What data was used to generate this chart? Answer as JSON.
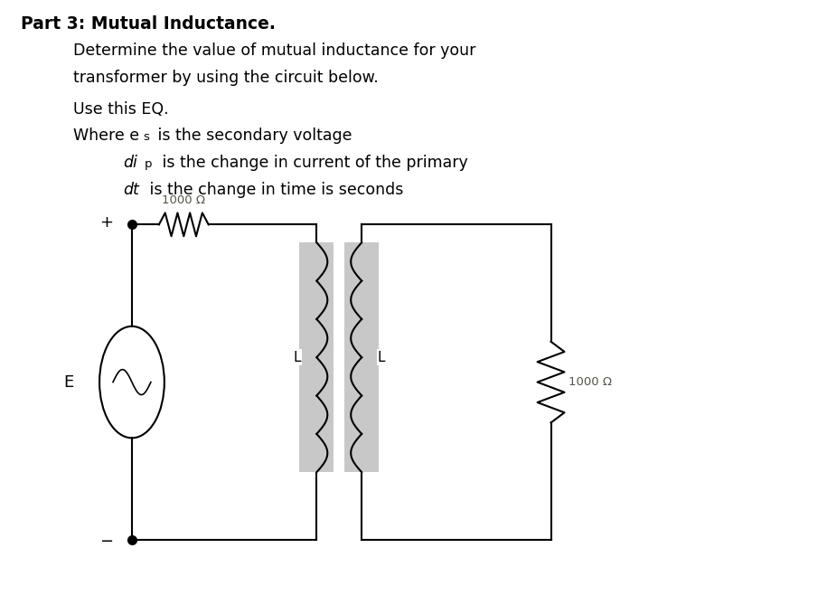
{
  "title_bold": "Part 3: Mutual Inductance.",
  "line1": "Determine the value of mutual inductance for your",
  "line2": "transformer by using the circuit below.",
  "line3": "Use this EQ.",
  "line4_pre": "Where e",
  "line4_sub": "s",
  "line4_suf": " is the secondary voltage",
  "line5_ital": "di",
  "line5_sub": "p",
  "line5_suf": " is the change in current of the primary",
  "line6_ital": "dt",
  "line6_suf": " is the change in time is seconds",
  "res1_label": "1000 Ω",
  "res2_label": "1000 Ω",
  "ind_label": "L",
  "src_label": "E",
  "plus_label": "+",
  "minus_label": "−",
  "bg_color": "#ffffff",
  "circuit_color": "#000000",
  "gray_fill": "#c8c8c8",
  "res_color": "#555555",
  "text_color": "#000000",
  "res_label_color": "#555544"
}
